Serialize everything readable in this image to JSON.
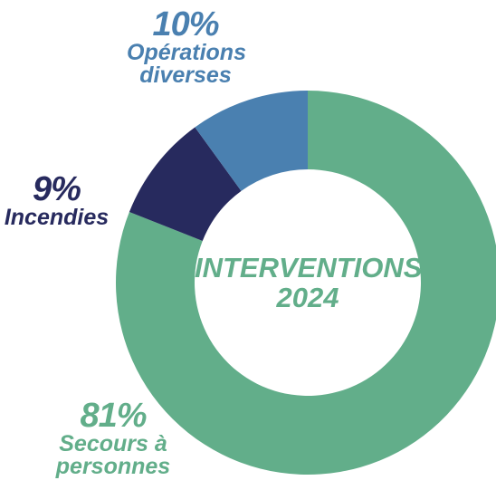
{
  "chart_data": {
    "type": "donut",
    "title": "INTERVENTIONS 2024",
    "categories": [
      "Secours à personnes",
      "Incendies",
      "Opérations diverses"
    ],
    "values": [
      81,
      9,
      10
    ],
    "value_labels": [
      "81%",
      "9%",
      "10%"
    ],
    "colors": [
      "#62ae8a",
      "#272a5e",
      "#4a80b0"
    ]
  }
}
